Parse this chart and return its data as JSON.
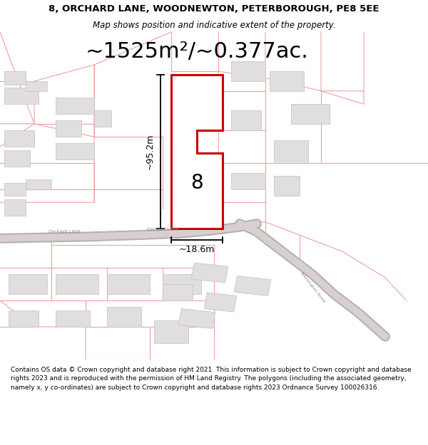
{
  "title_line1": "8, ORCHARD LANE, WOODNEWTON, PETERBOROUGH, PE8 5EE",
  "title_line2": "Map shows position and indicative extent of the property.",
  "area_label": "~1525m²/~0.377ac.",
  "dim_height": "~95.2m",
  "dim_width": "~18.6m",
  "house_number": "8",
  "footer": "Contains OS data © Crown copyright and database right 2021. This information is subject to Crown copyright and database rights 2023 and is reproduced with the permission of HM Land Registry. The polygons (including the associated geometry, namely x, y co-ordinates) are subject to Crown copyright and database rights 2023 Ordnance Survey 100026316.",
  "bg_color": "#ffffff",
  "parcel_color": "#f0a0a0",
  "highlight_color": "#cc0000",
  "building_fill": "#e0dede",
  "building_edge": "#c8c0c0",
  "road_outer": "#b8b0b0",
  "road_inner": "#d8d0d0",
  "road_label_color": "#888888",
  "title_fontsize": 9.5,
  "subtitle_fontsize": 8.5,
  "area_fontsize": 22,
  "dim_fontsize": 9,
  "number_fontsize": 20,
  "footer_fontsize": 6.5
}
